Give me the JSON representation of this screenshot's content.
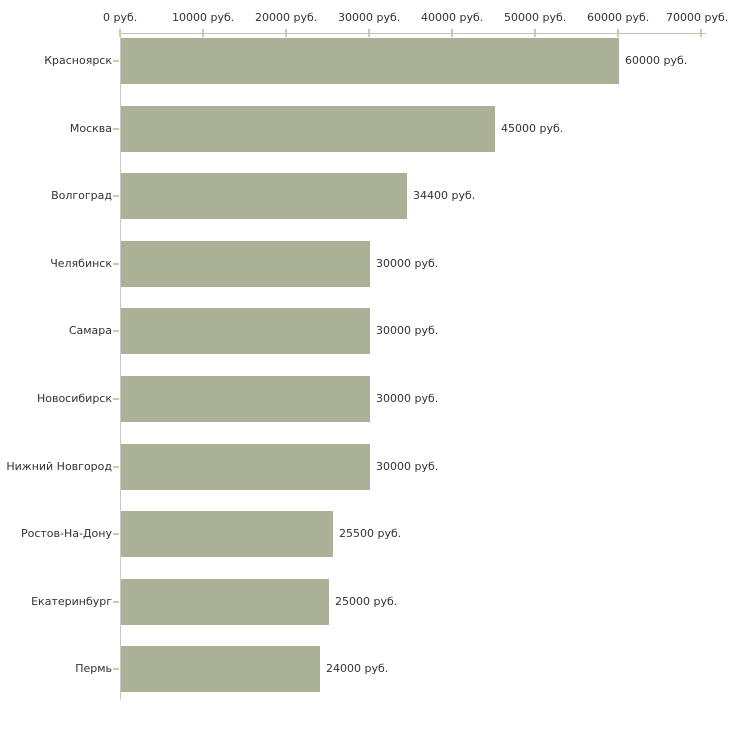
{
  "chart_data": {
    "type": "bar",
    "orientation": "horizontal",
    "title": "",
    "xlabel": "",
    "ylabel": "",
    "xlim": [
      0,
      70000
    ],
    "grid": false,
    "legend": false,
    "x_tick_values": [
      0,
      10000,
      20000,
      30000,
      40000,
      50000,
      60000,
      70000
    ],
    "x_tick_labels": [
      "0 руб.",
      "10000 руб.",
      "20000 руб.",
      "30000 руб.",
      "40000 руб.",
      "50000 руб.",
      "60000 руб.",
      "70000 руб."
    ],
    "categories": [
      "Красноярск",
      "Москва",
      "Волгоград",
      "Челябинск",
      "Самара",
      "Новосибирск",
      "Нижний Новгород",
      "Ростов-На-Дону",
      "Екатеринбург",
      "Пермь"
    ],
    "values": [
      60000,
      45000,
      34400,
      30000,
      30000,
      30000,
      30000,
      25500,
      25000,
      24000
    ],
    "value_labels": [
      "60000 руб.",
      "45000 руб.",
      "34400 руб.",
      "30000 руб.",
      "30000 руб.",
      "30000 руб.",
      "30000 руб.",
      "25500 руб.",
      "25000 руб.",
      "24000 руб."
    ],
    "colors": {
      "bar": "#abb197",
      "axis_line": "#c2c2ba",
      "tick": "#c8cc9e",
      "text": "#333333",
      "background": "#ffffff"
    }
  }
}
